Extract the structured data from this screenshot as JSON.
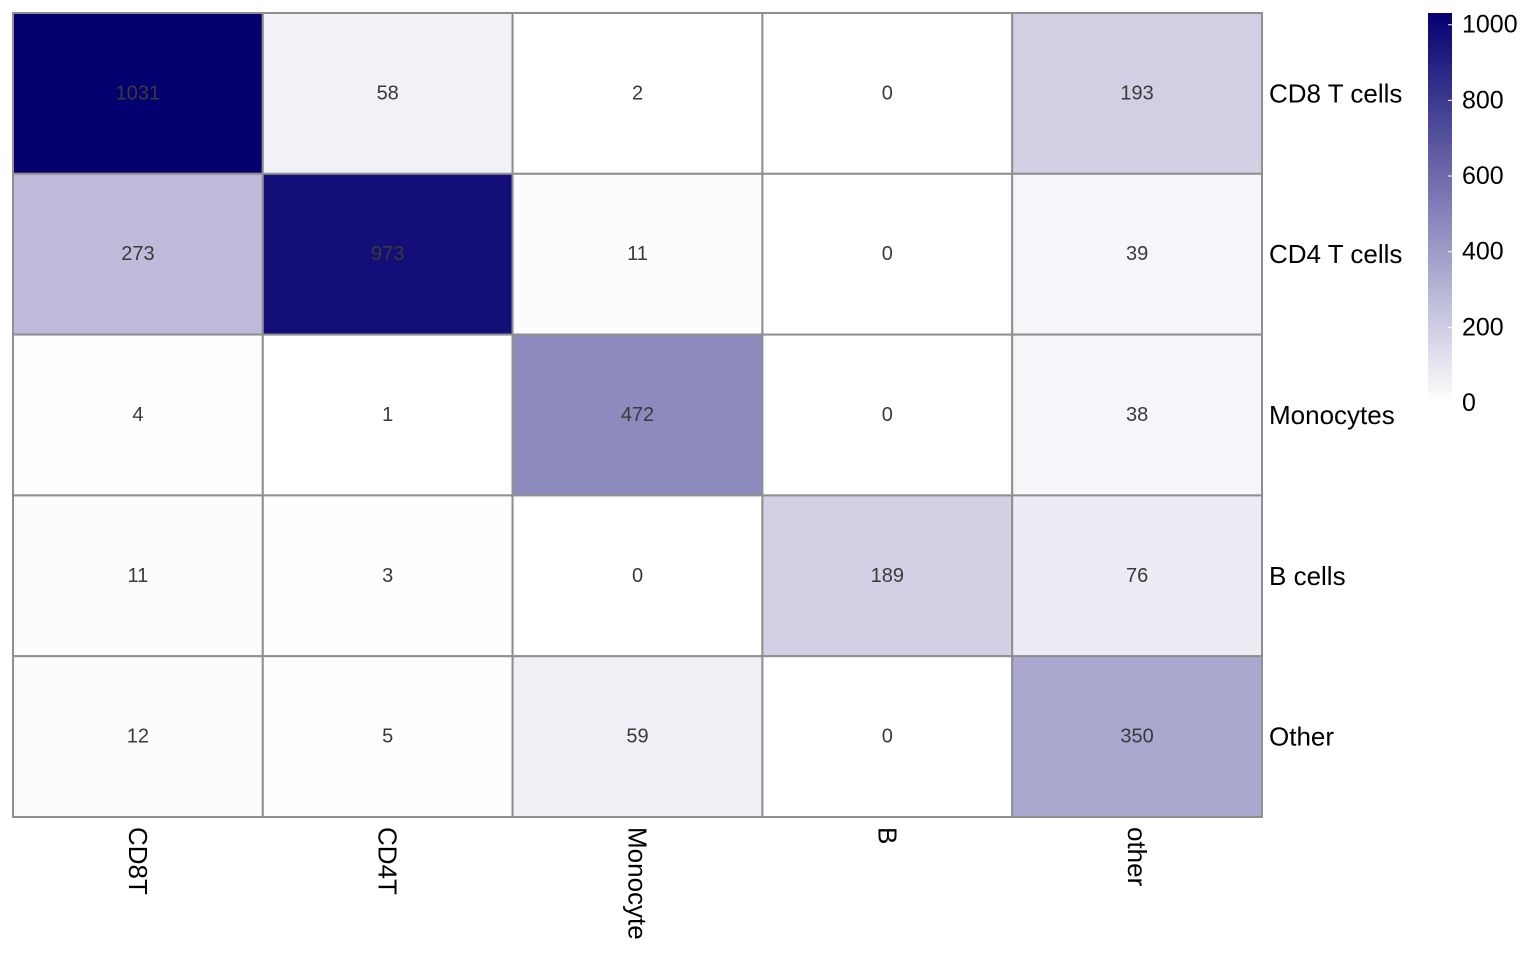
{
  "chart_data": {
    "type": "heatmap",
    "title": "",
    "xlabel": "",
    "ylabel": "",
    "rows": [
      "CD8 T cells",
      "CD4 T cells",
      "Monocytes",
      "B cells",
      "Other"
    ],
    "columns": [
      "CD8T",
      "CD4T",
      "Monocyte",
      "B",
      "other"
    ],
    "values": [
      [
        1031,
        58,
        2,
        0,
        193
      ],
      [
        273,
        973,
        11,
        0,
        39
      ],
      [
        4,
        1,
        472,
        0,
        38
      ],
      [
        11,
        3,
        0,
        189,
        76
      ],
      [
        12,
        5,
        59,
        0,
        350
      ]
    ],
    "color_scale": {
      "min": 0,
      "max": 1031,
      "low_color": "#ffffff",
      "high_color": "#050070",
      "ticks": [
        0,
        200,
        400,
        600,
        800,
        1000
      ]
    },
    "row_labels_position": "right",
    "column_labels_orientation": "rotated",
    "legend_position": "top-right",
    "cell_border_color": "#8f8f8f"
  }
}
